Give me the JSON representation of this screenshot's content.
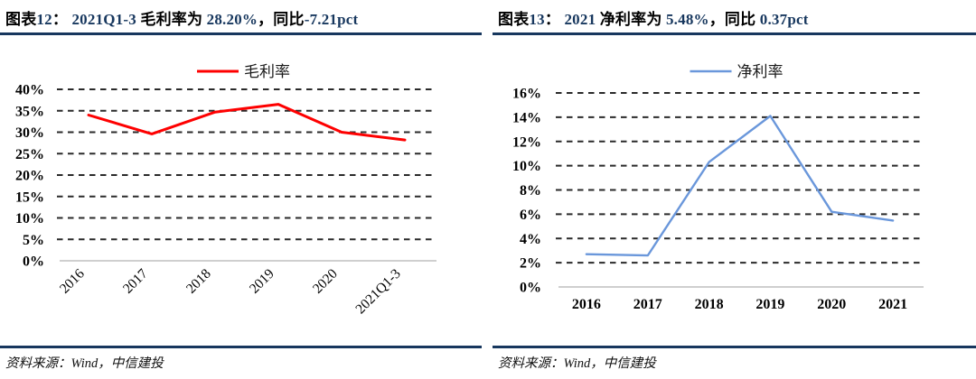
{
  "accent": {
    "rule_color": "#17375E",
    "title_number_color": "#17375E",
    "gridline_color": "#2a2a2a",
    "zero_axis_color": "#cfcfcf"
  },
  "headers": [
    {
      "segments": [
        {
          "text": "图表",
          "color": "#000000"
        },
        {
          "text": "12",
          "color": "#17375E"
        },
        {
          "text": "： ",
          "color": "#000000"
        },
        {
          "text": "2021Q1-3 ",
          "color": "#17375E"
        },
        {
          "text": "毛利率为 ",
          "color": "#000000"
        },
        {
          "text": "28.20%",
          "color": "#17375E"
        },
        {
          "text": "，同比",
          "color": "#000000"
        },
        {
          "text": "-7.21pct",
          "color": "#17375E"
        }
      ]
    },
    {
      "segments": [
        {
          "text": "图表",
          "color": "#000000"
        },
        {
          "text": "13",
          "color": "#17375E"
        },
        {
          "text": "： ",
          "color": "#000000"
        },
        {
          "text": "2021 ",
          "color": "#17375E"
        },
        {
          "text": "净利率为 ",
          "color": "#000000"
        },
        {
          "text": "5.48%",
          "color": "#17375E"
        },
        {
          "text": "，同比 ",
          "color": "#000000"
        },
        {
          "text": "0.37pct",
          "color": "#17375E"
        }
      ]
    }
  ],
  "sources": [
    "资料来源：Wind，中信建投",
    "资料来源：Wind，中信建投"
  ],
  "chart_data": [
    {
      "type": "line",
      "title": "图表12： 2021Q1-3 毛利率为 28.20%，同比-7.21pct",
      "legend": "毛利率",
      "legend_position": "top",
      "categories": [
        "2016",
        "2017",
        "2018",
        "2019",
        "2020",
        "2021Q1-3"
      ],
      "values": [
        34.0,
        29.6,
        34.7,
        36.5,
        30.0,
        28.2
      ],
      "unit": "%",
      "ylim": [
        0,
        40
      ],
      "ytick_step": 5,
      "ytick_labels": [
        "0%",
        "5%",
        "10%",
        "15%",
        "20%",
        "25%",
        "30%",
        "35%",
        "40%"
      ],
      "grid": "horizontal-dashed",
      "xlabel_rotation": -45,
      "line_color": "#FE0000"
    },
    {
      "type": "line",
      "title": "图表13： 2021 净利率为 5.48%，同比 0.37pct",
      "legend": "净利率",
      "legend_position": "top",
      "categories": [
        "2016",
        "2017",
        "2018",
        "2019",
        "2020",
        "2021"
      ],
      "values": [
        2.7,
        2.6,
        10.3,
        14.1,
        6.2,
        5.48
      ],
      "unit": "%",
      "ylim": [
        0,
        16
      ],
      "ytick_step": 2,
      "ytick_labels": [
        "0%",
        "2%",
        "4%",
        "6%",
        "8%",
        "10%",
        "12%",
        "14%",
        "16%"
      ],
      "grid": "horizontal-dashed",
      "xlabel_rotation": 0,
      "line_color": "#6A97DB"
    }
  ]
}
